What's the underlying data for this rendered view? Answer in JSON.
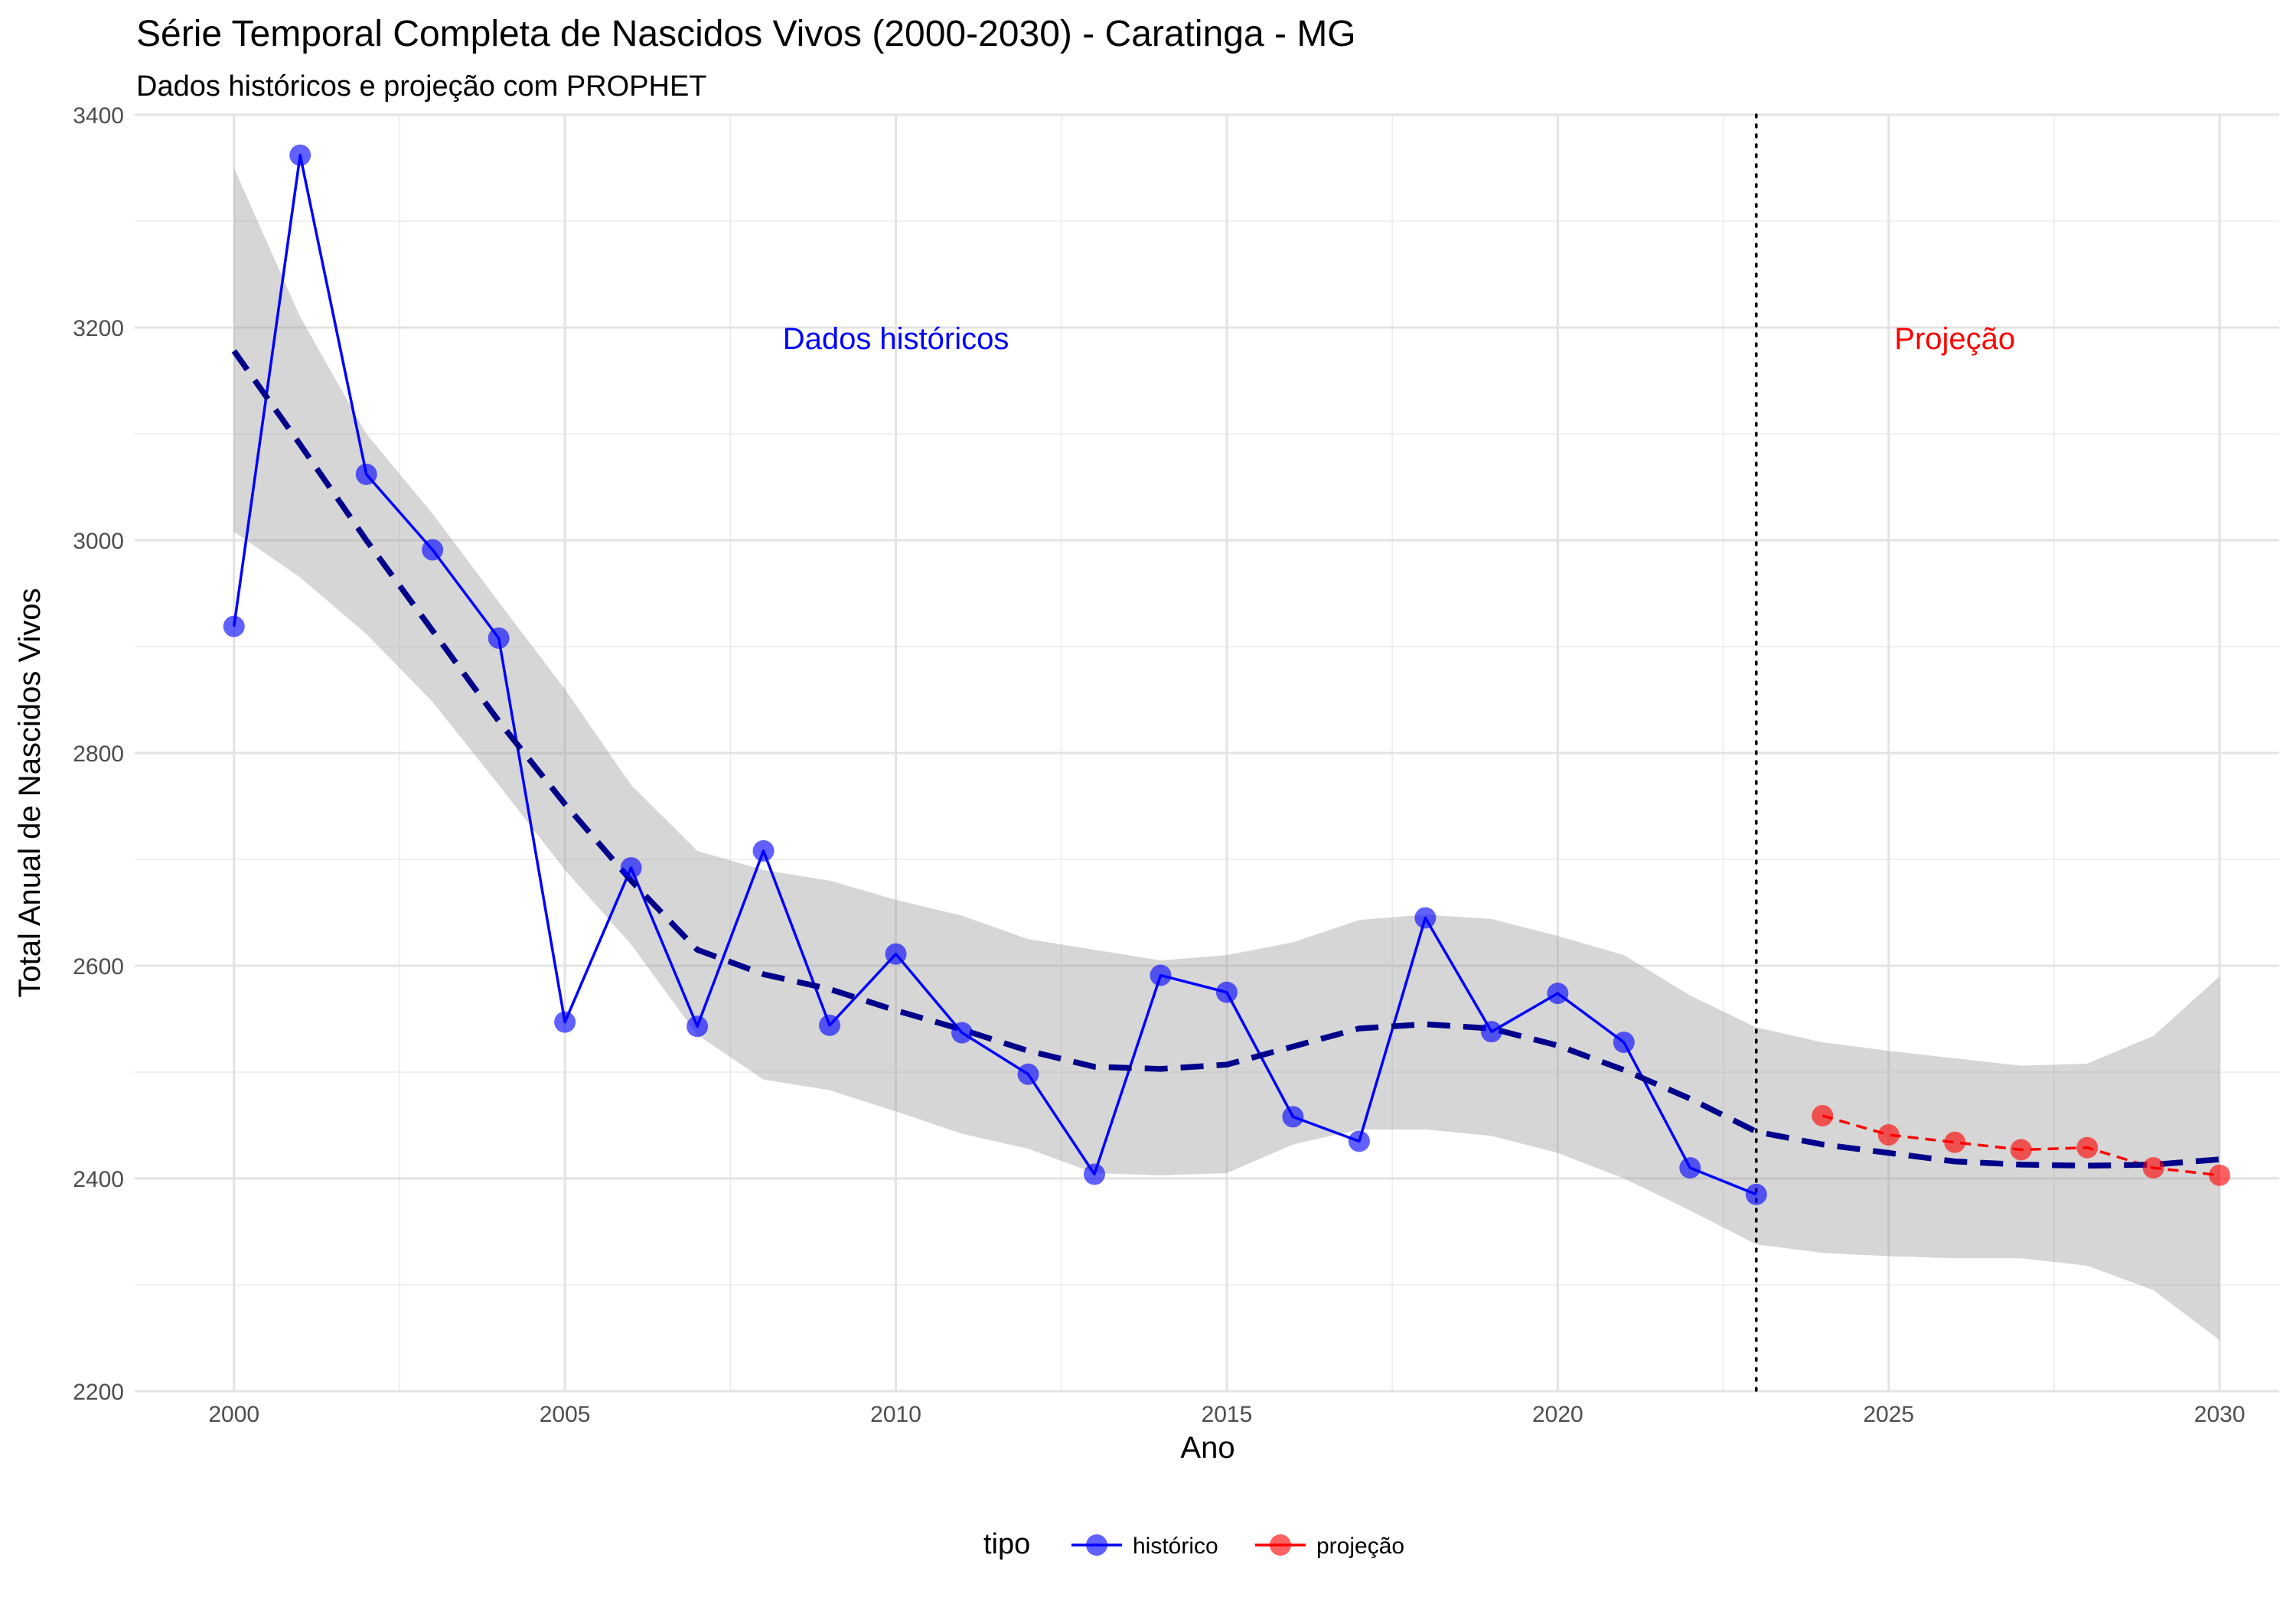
{
  "chart_data": {
    "type": "line",
    "title": "Série Temporal Completa de Nascidos Vivos (2000-2030) -  Caratinga - MG",
    "subtitle": "Dados históricos e projeção com PROPHET",
    "xlabel": "Ano",
    "ylabel": "Total Anual de Nascidos Vivos",
    "xlim": [
      1998.5,
      2030.9
    ],
    "ylim": [
      2200,
      3400
    ],
    "x_ticks": [
      2000,
      2005,
      2010,
      2015,
      2020,
      2025,
      2030
    ],
    "y_ticks": [
      2200,
      2400,
      2600,
      2800,
      3000,
      3200,
      3400
    ],
    "grid": true,
    "cutoff_year": 2023,
    "annotations": [
      {
        "text": "Dados históricos",
        "x": 2010,
        "y": 3190,
        "color": "#0000ff"
      },
      {
        "text": "Projeção",
        "x": 2026,
        "y": 3190,
        "color": "#ff0000"
      }
    ],
    "series": [
      {
        "name": "histórico",
        "color": "#0000ff",
        "x": [
          2000,
          2001,
          2002,
          2003,
          2004,
          2005,
          2006,
          2007,
          2008,
          2009,
          2010,
          2011,
          2012,
          2013,
          2014,
          2015,
          2016,
          2017,
          2018,
          2019,
          2020,
          2021,
          2022,
          2023
        ],
        "values": [
          2919,
          3362,
          3062,
          2991,
          2908,
          2547,
          2692,
          2543,
          2708,
          2544,
          2611,
          2537,
          2498,
          2404,
          2591,
          2575,
          2458,
          2435,
          2645,
          2538,
          2574,
          2528,
          2410,
          2385
        ]
      },
      {
        "name": "projeção",
        "color": "#ff0000",
        "x": [
          2024,
          2025,
          2026,
          2027,
          2028,
          2029,
          2030
        ],
        "values": [
          2459,
          2441,
          2434,
          2427,
          2429,
          2410,
          2403
        ]
      }
    ],
    "trend": {
      "x": [
        2000,
        2001,
        2002,
        2003,
        2004,
        2005,
        2006,
        2007,
        2008,
        2009,
        2010,
        2011,
        2012,
        2013,
        2014,
        2015,
        2016,
        2017,
        2018,
        2019,
        2020,
        2021,
        2022,
        2023,
        2024,
        2025,
        2026,
        2027,
        2028,
        2029,
        2030
      ],
      "values": [
        3178,
        3090,
        3000,
        2915,
        2830,
        2752,
        2680,
        2615,
        2592,
        2578,
        2558,
        2540,
        2520,
        2505,
        2503,
        2507,
        2524,
        2541,
        2545,
        2541,
        2525,
        2502,
        2475,
        2444,
        2432,
        2424,
        2416,
        2413,
        2412,
        2413,
        2418
      ],
      "lower": [
        3008,
        2965,
        2912,
        2848,
        2770,
        2690,
        2620,
        2535,
        2493,
        2483,
        2463,
        2442,
        2428,
        2405,
        2403,
        2405,
        2432,
        2446,
        2446,
        2440,
        2424,
        2400,
        2370,
        2338,
        2330,
        2327,
        2325,
        2325,
        2318,
        2295,
        2248
      ],
      "upper": [
        3350,
        3210,
        3100,
        3025,
        2942,
        2860,
        2770,
        2708,
        2690,
        2680,
        2662,
        2647,
        2625,
        2615,
        2605,
        2610,
        2622,
        2643,
        2648,
        2644,
        2628,
        2610,
        2572,
        2542,
        2528,
        2520,
        2513,
        2506,
        2508,
        2534,
        2590
      ]
    },
    "legend": {
      "title": "tipo",
      "position": "bottom",
      "items": [
        {
          "label": "histórico",
          "color": "#0000ff"
        },
        {
          "label": "projeção",
          "color": "#ff0000"
        }
      ]
    }
  }
}
